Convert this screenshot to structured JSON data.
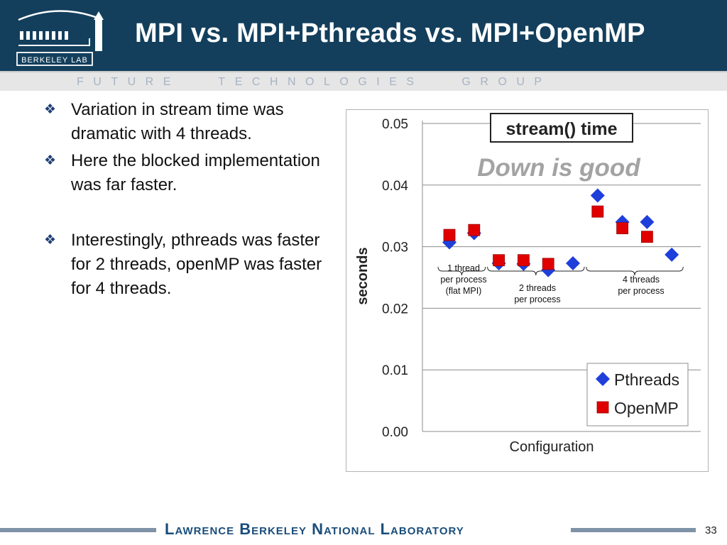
{
  "header": {
    "title": "MPI vs. MPI+Pthreads vs. MPI+OpenMP",
    "logo_text": "BERKELEY LAB",
    "tagline": "FUTURE   TECHNOLOGIES   GROUP"
  },
  "bullets": [
    "Variation in stream time was dramatic with 4 threads.",
    "Here the blocked implementation was far faster.",
    "Interestingly, pthreads was faster for 2 threads, openMP was faster for 4 threads."
  ],
  "chart_data": {
    "type": "scatter",
    "title": "stream() time",
    "annotation": "Down is good",
    "xlabel": "Configuration",
    "ylabel": "seconds",
    "ylim": [
      0,
      0.05
    ],
    "yticks": [
      "0.00",
      "0.01",
      "0.02",
      "0.03",
      "0.04",
      "0.05"
    ],
    "grid": true,
    "legend_position": "bottom-right",
    "series": [
      {
        "name": "Pthreads",
        "color": "#1f3fdb",
        "marker": "diamond",
        "values": [
          0.0307,
          0.0322,
          0.0273,
          0.0272,
          0.0262,
          0.0273,
          0.0383,
          0.034,
          0.034,
          0.0287
        ]
      },
      {
        "name": "OpenMP",
        "color": "#e00000",
        "marker": "square",
        "values": [
          0.0319,
          0.0327,
          0.0278,
          0.0278,
          0.0272,
          null,
          0.0357,
          0.033,
          0.0316,
          null
        ]
      }
    ],
    "groups": [
      {
        "label_lines": [
          "1 thread",
          "per process",
          "(flat MPI)"
        ]
      },
      {
        "label_lines": [
          "2 threads",
          "per process"
        ]
      },
      {
        "label_lines": [
          "4 threads",
          "per process"
        ]
      }
    ]
  },
  "footer": {
    "text": "Lawrence Berkeley National Laboratory",
    "page": "33"
  }
}
